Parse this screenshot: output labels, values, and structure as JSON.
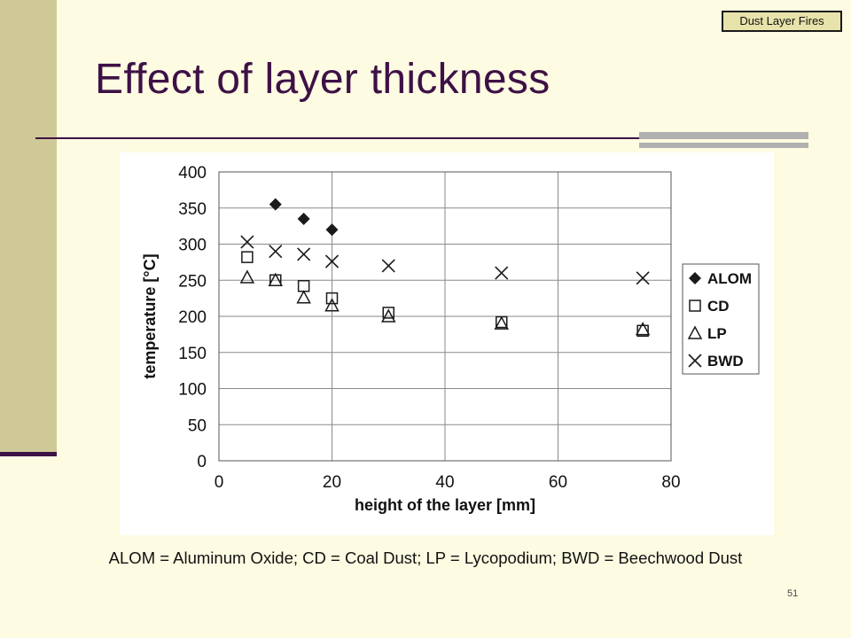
{
  "badge": "Dust Layer Fires",
  "title": "Effect of layer thickness",
  "caption": "ALOM = Aluminum Oxide; CD = Coal Dust; LP = Lycopodium; BWD = Beechwood Dust",
  "page_number": "51",
  "colors": {
    "title": "#3e1146",
    "sidebar": "#cfc997",
    "background": "#fdfbe2"
  },
  "chart_data": {
    "type": "scatter",
    "xlabel": "height of the layer [mm]",
    "ylabel": "temperature [°C]",
    "xlim": [
      0,
      80
    ],
    "ylim": [
      0,
      400
    ],
    "xticks": [
      0,
      20,
      40,
      60,
      80
    ],
    "yticks": [
      0,
      50,
      100,
      150,
      200,
      250,
      300,
      350,
      400
    ],
    "grid": "horizontal",
    "legend_position": "right",
    "series": [
      {
        "name": "ALOM",
        "marker": "diamond",
        "points": [
          [
            10,
            355
          ],
          [
            15,
            335
          ],
          [
            20,
            320
          ]
        ]
      },
      {
        "name": "CD",
        "marker": "square",
        "points": [
          [
            5,
            282
          ],
          [
            10,
            250
          ],
          [
            15,
            242
          ],
          [
            20,
            225
          ],
          [
            30,
            205
          ],
          [
            50,
            192
          ],
          [
            75,
            180
          ]
        ]
      },
      {
        "name": "LP",
        "marker": "triangle",
        "points": [
          [
            5,
            254
          ],
          [
            10,
            250
          ],
          [
            15,
            226
          ],
          [
            20,
            215
          ],
          [
            30,
            200
          ],
          [
            50,
            190
          ],
          [
            75,
            182
          ]
        ]
      },
      {
        "name": "BWD",
        "marker": "x",
        "points": [
          [
            5,
            303
          ],
          [
            10,
            290
          ],
          [
            15,
            286
          ],
          [
            20,
            276
          ],
          [
            30,
            270
          ],
          [
            50,
            260
          ],
          [
            75,
            253
          ]
        ]
      }
    ]
  }
}
